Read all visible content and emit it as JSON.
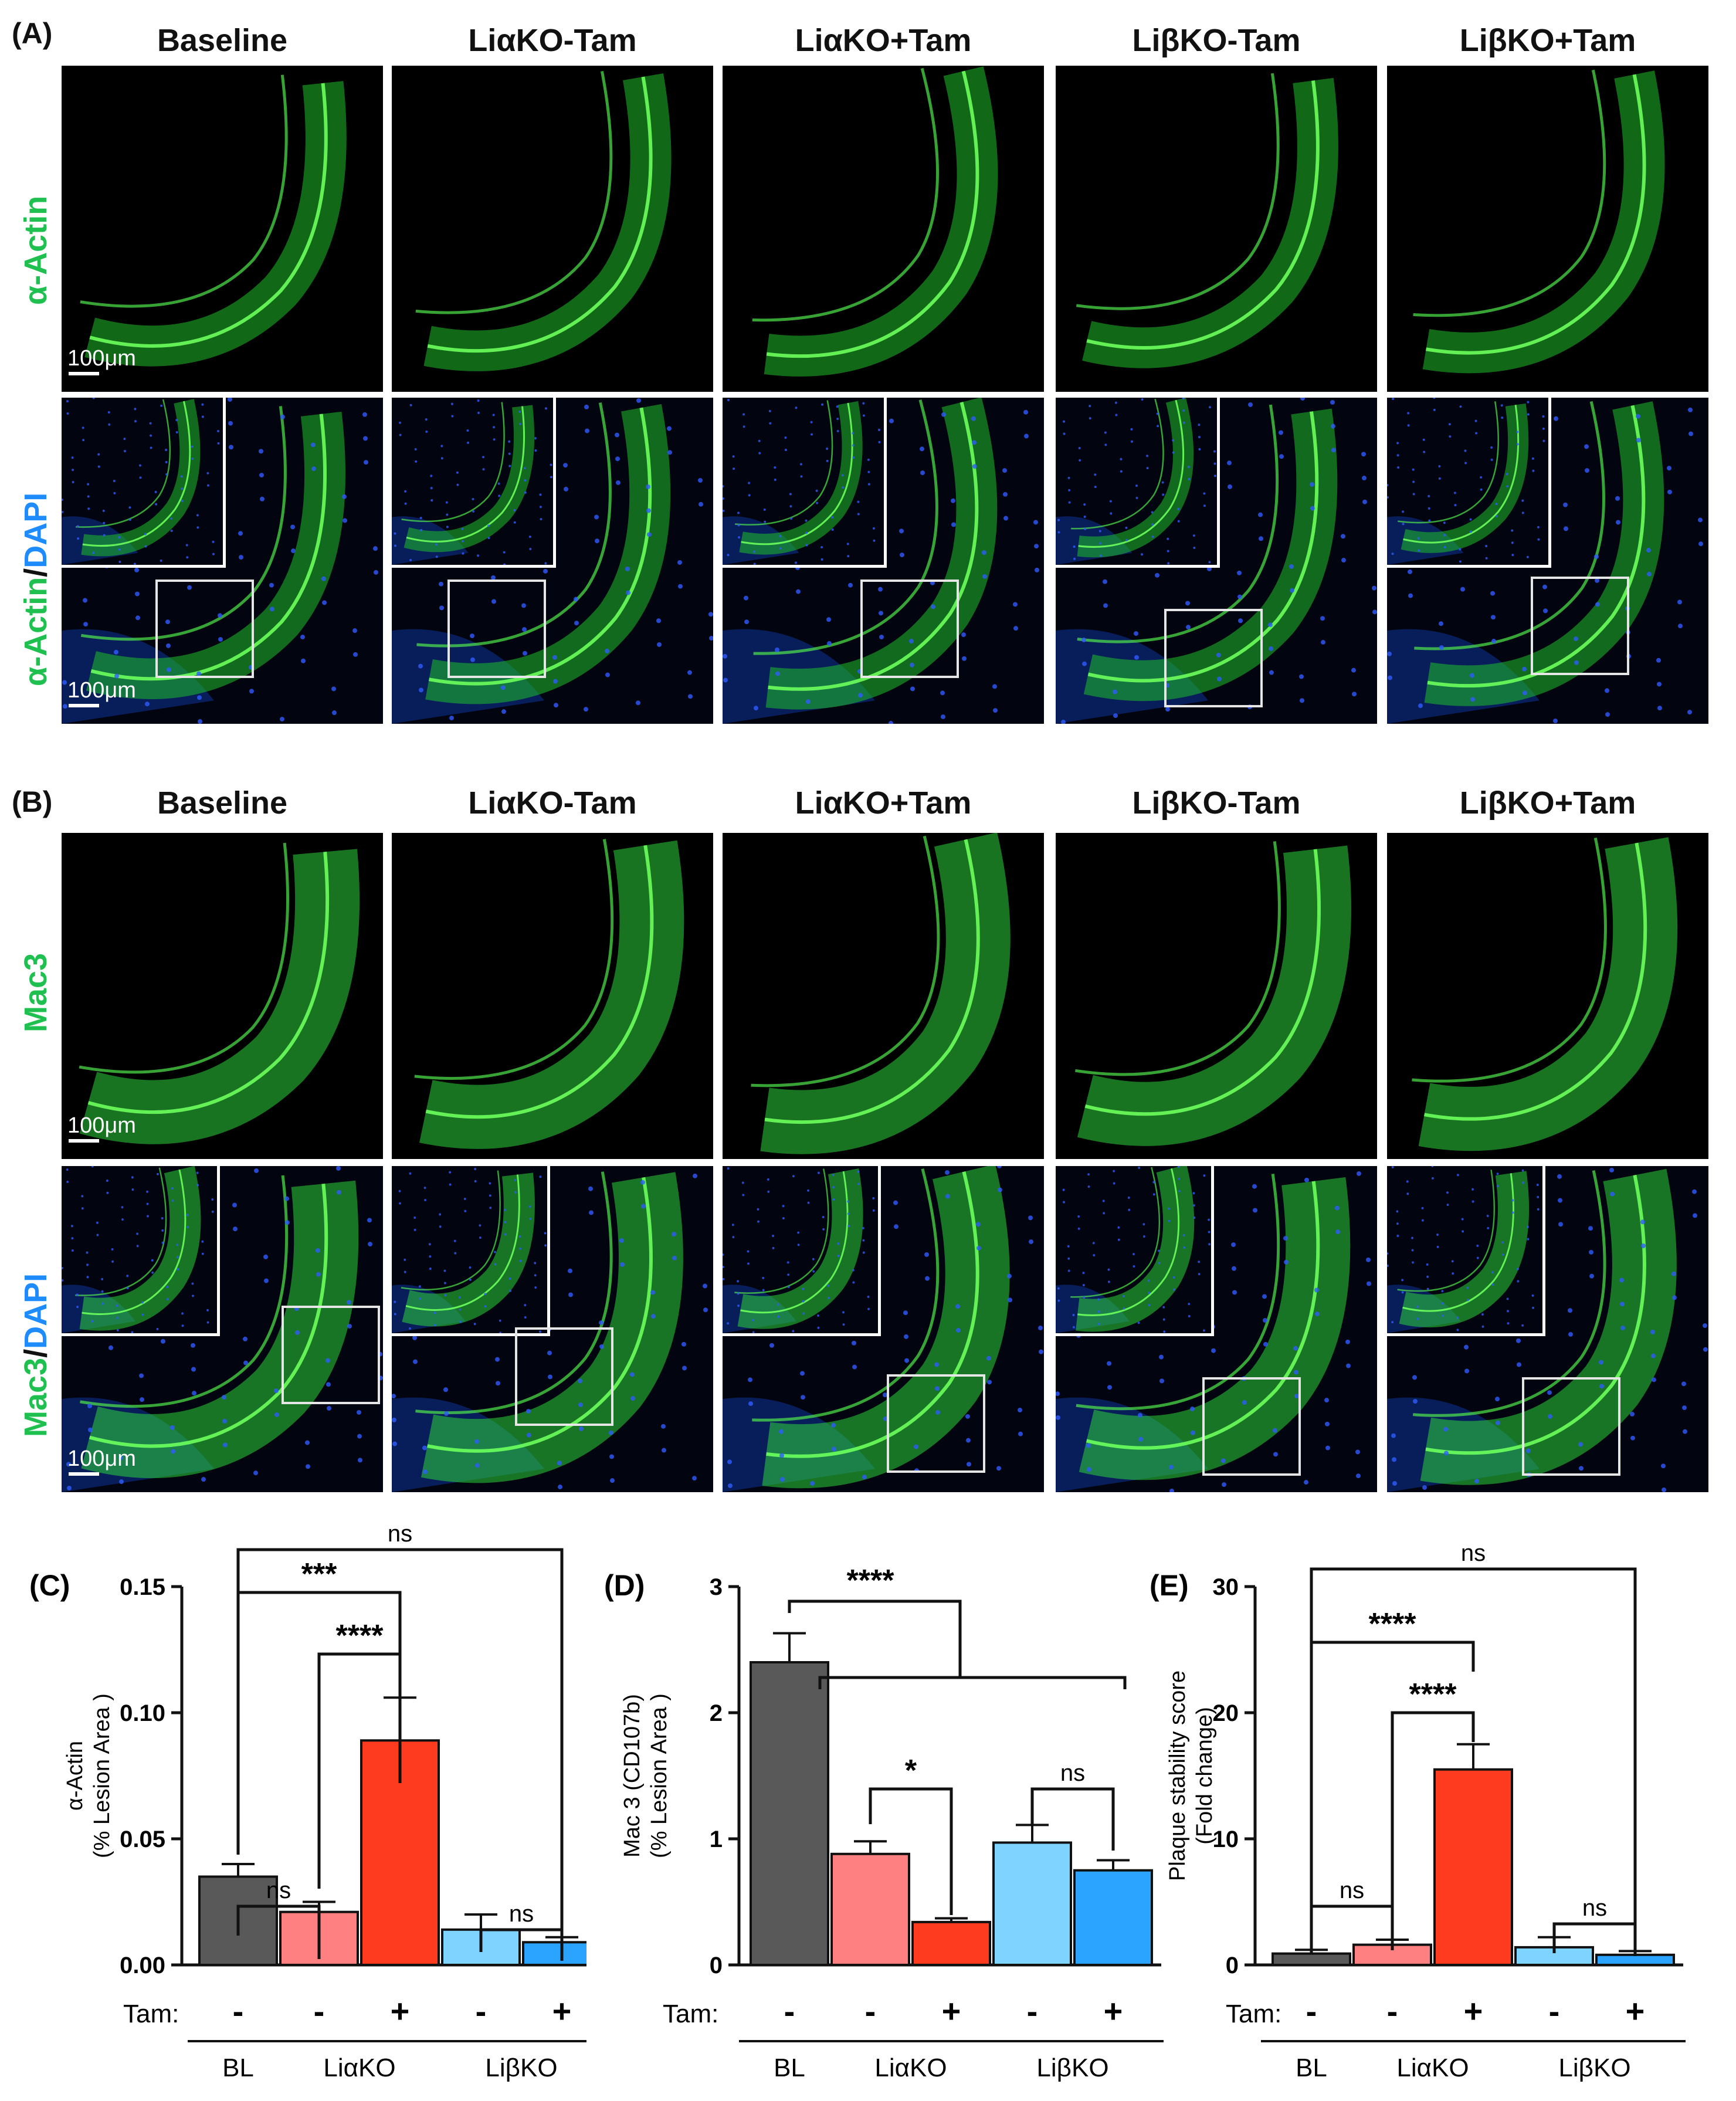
{
  "panelA": {
    "letter": "(A)",
    "columns": [
      "Baseline",
      "LiαKO-Tam",
      "LiαKO+Tam",
      "LiβKO-Tam",
      "LiβKO+Tam"
    ],
    "row1_label": "α-Actin",
    "row2_label_a": "α-Actin",
    "row2_label_sep": "/",
    "row2_label_b": "DAPI",
    "scale1": "100μm",
    "scale2": "100μm",
    "colors": {
      "stain": "#2fd83a",
      "nuclei": "#1a3cff"
    }
  },
  "panelB": {
    "letter": "(B)",
    "columns": [
      "Baseline",
      "LiαKO-Tam",
      "LiαKO+Tam",
      "LiβKO-Tam",
      "LiβKO+Tam"
    ],
    "row1_label": "Mac3",
    "row2_label_a": "Mac3",
    "row2_label_sep": "/",
    "row2_label_b": "DAPI",
    "scale1": "100μm",
    "scale2": "100μm"
  },
  "chart_data": [
    {
      "type": "bar",
      "panel": "(C)",
      "ylabel_line1": "α-Actin",
      "ylabel_line2": "(% Lesion Area )",
      "ylim": [
        0,
        0.15
      ],
      "yticks": [
        "0.00",
        "0.05",
        "0.10",
        "0.15"
      ],
      "ytick_values": [
        0,
        0.05,
        0.1,
        0.15
      ],
      "values": [
        0.035,
        0.021,
        0.089,
        0.014,
        0.009
      ],
      "errors": [
        0.005,
        0.004,
        0.017,
        0.006,
        0.002
      ],
      "colors": [
        "#595959",
        "#ff8080",
        "#ff3b1f",
        "#7fd4ff",
        "#2aa4ff"
      ],
      "tam_label": "Tam:",
      "tam_signs": [
        "-",
        "-",
        "+",
        "-",
        "+"
      ],
      "groups": [
        "BL",
        "LiαKO",
        "LiβKO"
      ],
      "annotations": [
        "ns",
        "***",
        "****",
        "ns",
        "ns"
      ]
    },
    {
      "type": "bar",
      "panel": "(D)",
      "ylabel_line1": "Mac 3 (CD107b)",
      "ylabel_line2": "(% Lesion Area )",
      "ylim": [
        0,
        3
      ],
      "yticks": [
        "0",
        "1",
        "2",
        "3"
      ],
      "ytick_values": [
        0,
        1,
        2,
        3
      ],
      "values": [
        2.4,
        0.88,
        0.34,
        0.97,
        0.75
      ],
      "errors": [
        0.23,
        0.1,
        0.03,
        0.14,
        0.08
      ],
      "colors": [
        "#595959",
        "#ff8080",
        "#ff3b1f",
        "#7fd4ff",
        "#2aa4ff"
      ],
      "tam_label": "Tam:",
      "tam_signs": [
        "-",
        "-",
        "+",
        "-",
        "+"
      ],
      "groups": [
        "BL",
        "LiαKO",
        "LiβKO"
      ],
      "annotations": [
        "****",
        "*",
        "ns"
      ]
    },
    {
      "type": "bar",
      "panel": "(E)",
      "ylabel_line1": "Plaque stability score",
      "ylabel_line2": "(Fold change)",
      "ylim": [
        0,
        30
      ],
      "yticks": [
        "0",
        "10",
        "20",
        "30"
      ],
      "ytick_values": [
        0,
        10,
        20,
        30
      ],
      "values": [
        0.9,
        1.6,
        15.5,
        1.4,
        0.8
      ],
      "errors": [
        0.3,
        0.4,
        2.0,
        0.8,
        0.3
      ],
      "colors": [
        "#595959",
        "#ff8080",
        "#ff3b1f",
        "#7fd4ff",
        "#2aa4ff"
      ],
      "tam_label": "Tam:",
      "tam_signs": [
        "-",
        "-",
        "+",
        "-",
        "+"
      ],
      "groups": [
        "BL",
        "LiαKO",
        "LiβKO"
      ],
      "annotations": [
        "ns",
        "****",
        "****",
        "ns",
        "ns"
      ]
    }
  ]
}
